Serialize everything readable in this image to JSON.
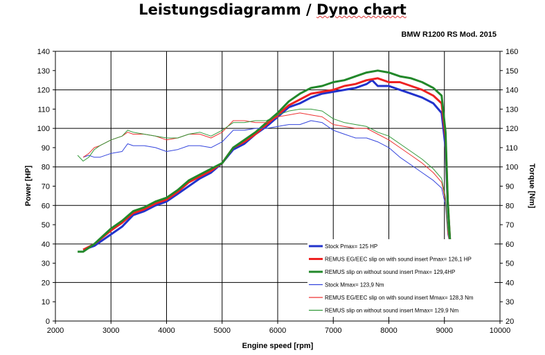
{
  "header": {
    "title_main": "Leistungsdiagramm / ",
    "title_squiggle": "Dyno chart"
  },
  "chart_data": {
    "type": "line",
    "subtitle": "BMW R1200 RS Mod. 2015",
    "xlabel": "Engine speed [rpm]",
    "ylabel_left": "Power [HP]",
    "ylabel_right": "Torque [Nm]",
    "xlim": [
      2000,
      10000
    ],
    "ylim_left": [
      0,
      140
    ],
    "ylim_right": [
      20,
      160
    ],
    "x_ticks": [
      2000,
      3000,
      4000,
      5000,
      6000,
      7000,
      8000,
      9000,
      10000
    ],
    "y_ticks_left": [
      0,
      10,
      20,
      30,
      40,
      50,
      60,
      70,
      80,
      90,
      100,
      110,
      120,
      130,
      140
    ],
    "y_ticks_right": [
      20,
      30,
      40,
      50,
      60,
      70,
      80,
      90,
      100,
      110,
      120,
      130,
      140,
      150,
      160
    ],
    "grid": true,
    "legend_position": "bottom-right",
    "series": [
      {
        "name": "Stock Pmax= 125 HP",
        "axis": "left",
        "color": "#2233cc",
        "width": 3,
        "points": [
          [
            2500,
            37
          ],
          [
            2700,
            39
          ],
          [
            3000,
            45
          ],
          [
            3200,
            49
          ],
          [
            3400,
            55
          ],
          [
            3600,
            57
          ],
          [
            3800,
            60
          ],
          [
            4000,
            62
          ],
          [
            4200,
            66
          ],
          [
            4400,
            70
          ],
          [
            4600,
            74
          ],
          [
            4800,
            77
          ],
          [
            5000,
            82
          ],
          [
            5200,
            89
          ],
          [
            5400,
            92
          ],
          [
            5600,
            97
          ],
          [
            5800,
            101
          ],
          [
            6000,
            106
          ],
          [
            6200,
            111
          ],
          [
            6400,
            113
          ],
          [
            6600,
            116
          ],
          [
            6800,
            118
          ],
          [
            7000,
            119
          ],
          [
            7200,
            120
          ],
          [
            7400,
            121
          ],
          [
            7600,
            123
          ],
          [
            7700,
            125
          ],
          [
            7800,
            122
          ],
          [
            8000,
            122
          ],
          [
            8200,
            120
          ],
          [
            8400,
            118
          ],
          [
            8600,
            116
          ],
          [
            8800,
            113
          ],
          [
            8950,
            108
          ],
          [
            9020,
            90
          ],
          [
            9060,
            60
          ],
          [
            9100,
            41
          ]
        ]
      },
      {
        "name": "REMUS EG/EEC slip on with sound insert Pmax= 126,1 HP",
        "axis": "left",
        "color": "#ee2222",
        "width": 3,
        "points": [
          [
            2500,
            37
          ],
          [
            2700,
            40
          ],
          [
            3000,
            47
          ],
          [
            3200,
            51
          ],
          [
            3400,
            56
          ],
          [
            3600,
            58
          ],
          [
            3800,
            61
          ],
          [
            4000,
            63
          ],
          [
            4200,
            67
          ],
          [
            4400,
            72
          ],
          [
            4600,
            75
          ],
          [
            4800,
            78
          ],
          [
            5000,
            82
          ],
          [
            5200,
            90
          ],
          [
            5400,
            93
          ],
          [
            5600,
            97
          ],
          [
            5800,
            102
          ],
          [
            6000,
            107
          ],
          [
            6200,
            112
          ],
          [
            6400,
            115
          ],
          [
            6600,
            118
          ],
          [
            6800,
            119
          ],
          [
            7000,
            120
          ],
          [
            7200,
            122
          ],
          [
            7400,
            123
          ],
          [
            7600,
            125
          ],
          [
            7800,
            126
          ],
          [
            8000,
            124
          ],
          [
            8200,
            124
          ],
          [
            8400,
            122
          ],
          [
            8600,
            120
          ],
          [
            8800,
            117
          ],
          [
            8950,
            113
          ],
          [
            9020,
            95
          ],
          [
            9060,
            62
          ],
          [
            9100,
            42
          ]
        ]
      },
      {
        "name": "REMUS slip on without sound insert Pmax= 129,4HP",
        "axis": "left",
        "color": "#22882a",
        "width": 3,
        "points": [
          [
            2400,
            36
          ],
          [
            2500,
            36
          ],
          [
            2700,
            40
          ],
          [
            3000,
            48
          ],
          [
            3200,
            52
          ],
          [
            3400,
            57
          ],
          [
            3600,
            59
          ],
          [
            3800,
            62
          ],
          [
            4000,
            64
          ],
          [
            4200,
            68
          ],
          [
            4400,
            73
          ],
          [
            4600,
            76
          ],
          [
            4800,
            79
          ],
          [
            5000,
            82
          ],
          [
            5200,
            90
          ],
          [
            5400,
            94
          ],
          [
            5600,
            98
          ],
          [
            5800,
            103
          ],
          [
            6000,
            108
          ],
          [
            6200,
            114
          ],
          [
            6400,
            118
          ],
          [
            6600,
            121
          ],
          [
            6800,
            122
          ],
          [
            7000,
            124
          ],
          [
            7200,
            125
          ],
          [
            7400,
            127
          ],
          [
            7600,
            129
          ],
          [
            7800,
            130
          ],
          [
            8000,
            129
          ],
          [
            8200,
            127
          ],
          [
            8400,
            126
          ],
          [
            8600,
            124
          ],
          [
            8800,
            121
          ],
          [
            8950,
            117
          ],
          [
            9020,
            98
          ],
          [
            9060,
            62
          ],
          [
            9100,
            42
          ]
        ]
      },
      {
        "name": "Stock Mmax= 123,9 Nm",
        "axis": "right",
        "color": "#3344dd",
        "width": 1,
        "points": [
          [
            2500,
            105
          ],
          [
            2600,
            106
          ],
          [
            2700,
            105
          ],
          [
            2800,
            105
          ],
          [
            3000,
            107
          ],
          [
            3200,
            108
          ],
          [
            3300,
            112
          ],
          [
            3400,
            111
          ],
          [
            3600,
            111
          ],
          [
            3800,
            110
          ],
          [
            4000,
            108
          ],
          [
            4200,
            109
          ],
          [
            4400,
            111
          ],
          [
            4600,
            111
          ],
          [
            4800,
            110
          ],
          [
            5000,
            113
          ],
          [
            5200,
            119
          ],
          [
            5400,
            119
          ],
          [
            5600,
            120
          ],
          [
            5800,
            120
          ],
          [
            6000,
            121
          ],
          [
            6200,
            122
          ],
          [
            6400,
            122
          ],
          [
            6600,
            124
          ],
          [
            6800,
            123
          ],
          [
            7000,
            119
          ],
          [
            7200,
            117
          ],
          [
            7400,
            115
          ],
          [
            7600,
            115
          ],
          [
            7800,
            113
          ],
          [
            8000,
            110
          ],
          [
            8200,
            105
          ],
          [
            8400,
            101
          ],
          [
            8600,
            97
          ],
          [
            8800,
            93
          ],
          [
            8950,
            89
          ],
          [
            9020,
            80
          ],
          [
            9060,
            65
          ],
          [
            9100,
            60
          ]
        ]
      },
      {
        "name": "REMUS EG/EEC slip on with sound insert Mmax= 128,3 Nm",
        "axis": "right",
        "color": "#ee3333",
        "width": 1,
        "points": [
          [
            2500,
            105
          ],
          [
            2600,
            107
          ],
          [
            2700,
            110
          ],
          [
            2800,
            111
          ],
          [
            3000,
            114
          ],
          [
            3200,
            116
          ],
          [
            3300,
            118
          ],
          [
            3400,
            117
          ],
          [
            3600,
            117
          ],
          [
            3800,
            116
          ],
          [
            4000,
            114
          ],
          [
            4200,
            115
          ],
          [
            4400,
            117
          ],
          [
            4600,
            117
          ],
          [
            4800,
            115
          ],
          [
            5000,
            118
          ],
          [
            5200,
            124
          ],
          [
            5400,
            124
          ],
          [
            5600,
            123
          ],
          [
            5800,
            123
          ],
          [
            6000,
            126
          ],
          [
            6200,
            127
          ],
          [
            6400,
            128
          ],
          [
            6600,
            127
          ],
          [
            6800,
            126
          ],
          [
            7000,
            122
          ],
          [
            7200,
            121
          ],
          [
            7400,
            120
          ],
          [
            7600,
            120
          ],
          [
            7800,
            117
          ],
          [
            8000,
            114
          ],
          [
            8200,
            110
          ],
          [
            8400,
            106
          ],
          [
            8600,
            102
          ],
          [
            8800,
            97
          ],
          [
            8950,
            92
          ],
          [
            9020,
            82
          ],
          [
            9060,
            66
          ],
          [
            9100,
            60
          ]
        ]
      },
      {
        "name": "REMUS slip on without sound insert Mmax= 129,9 Nm",
        "axis": "right",
        "color": "#33993a",
        "width": 1,
        "points": [
          [
            2400,
            106
          ],
          [
            2500,
            103
          ],
          [
            2600,
            105
          ],
          [
            2700,
            109
          ],
          [
            2800,
            111
          ],
          [
            3000,
            114
          ],
          [
            3200,
            116
          ],
          [
            3300,
            119
          ],
          [
            3400,
            118
          ],
          [
            3600,
            117
          ],
          [
            3800,
            116
          ],
          [
            4000,
            115
          ],
          [
            4200,
            115
          ],
          [
            4400,
            117
          ],
          [
            4600,
            118
          ],
          [
            4800,
            116
          ],
          [
            5000,
            119
          ],
          [
            5200,
            123
          ],
          [
            5400,
            123
          ],
          [
            5600,
            124
          ],
          [
            5800,
            124
          ],
          [
            6000,
            127
          ],
          [
            6200,
            129
          ],
          [
            6400,
            130
          ],
          [
            6600,
            130
          ],
          [
            6800,
            129
          ],
          [
            7000,
            125
          ],
          [
            7200,
            123
          ],
          [
            7400,
            122
          ],
          [
            7600,
            121
          ],
          [
            7800,
            118
          ],
          [
            8000,
            116
          ],
          [
            8200,
            112
          ],
          [
            8400,
            108
          ],
          [
            8600,
            104
          ],
          [
            8800,
            99
          ],
          [
            8950,
            94
          ],
          [
            9020,
            84
          ],
          [
            9060,
            68
          ],
          [
            9100,
            60
          ]
        ]
      }
    ]
  }
}
